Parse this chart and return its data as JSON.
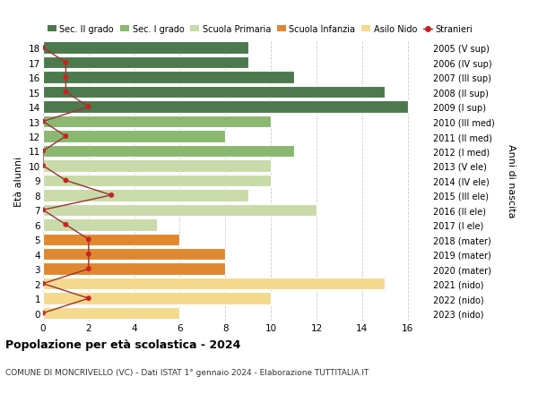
{
  "ages": [
    0,
    1,
    2,
    3,
    4,
    5,
    6,
    7,
    8,
    9,
    10,
    11,
    12,
    13,
    14,
    15,
    16,
    17,
    18
  ],
  "right_labels": [
    "2023 (nido)",
    "2022 (nido)",
    "2021 (nido)",
    "2020 (mater)",
    "2019 (mater)",
    "2018 (mater)",
    "2017 (I ele)",
    "2016 (II ele)",
    "2015 (III ele)",
    "2014 (IV ele)",
    "2013 (V ele)",
    "2012 (I med)",
    "2011 (II med)",
    "2010 (III med)",
    "2009 (I sup)",
    "2008 (II sup)",
    "2007 (III sup)",
    "2006 (IV sup)",
    "2005 (V sup)"
  ],
  "bar_values": [
    6,
    10,
    15,
    8,
    8,
    6,
    5,
    12,
    9,
    10,
    10,
    11,
    8,
    10,
    16,
    15,
    11,
    9,
    9
  ],
  "stranieri": [
    0,
    2,
    0,
    2,
    2,
    2,
    1,
    0,
    3,
    1,
    0,
    0,
    1,
    0,
    2,
    1,
    1,
    1,
    0
  ],
  "bar_colors": [
    "#f5d98e",
    "#f5d98e",
    "#f5d98e",
    "#e08830",
    "#e08830",
    "#e08830",
    "#c8dba8",
    "#c8dba8",
    "#c8dba8",
    "#c8dba8",
    "#c8dba8",
    "#8ab870",
    "#8ab870",
    "#8ab870",
    "#4d7a4d",
    "#4d7a4d",
    "#4d7a4d",
    "#4d7a4d",
    "#4d7a4d"
  ],
  "legend_labels": [
    "Sec. II grado",
    "Sec. I grado",
    "Scuola Primaria",
    "Scuola Infanzia",
    "Asilo Nido",
    "Stranieri"
  ],
  "legend_colors": [
    "#4d7a4d",
    "#8ab870",
    "#c8dba8",
    "#e08830",
    "#f5d98e",
    "#cc2222"
  ],
  "ylabel": "Età alunni",
  "ylabel_right": "Anni di nascita",
  "title": "Popolazione per età scolastica - 2024",
  "subtitle": "COMUNE DI MONCRIVELLO (VC) - Dati ISTAT 1° gennaio 2024 - Elaborazione TUTTITALIA.IT",
  "xlim": [
    0,
    17
  ],
  "xticks": [
    0,
    2,
    4,
    6,
    8,
    10,
    12,
    14,
    16
  ],
  "stranieri_color": "#cc2222",
  "stranieri_line_color": "#993333",
  "bg_color": "#ffffff",
  "grid_color": "#cccccc"
}
